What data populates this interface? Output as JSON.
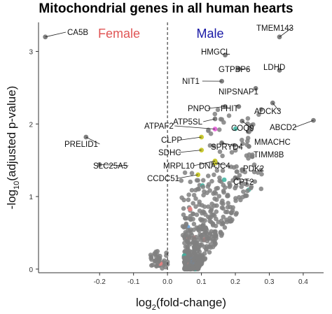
{
  "chart_data": {
    "type": "scatter",
    "title": "Mitochondrial genes in all human hearts",
    "xlabel": {
      "prefix": "log",
      "sub": "2",
      "suffix": "(fold-change)"
    },
    "ylabel": {
      "prefix": "-log",
      "sub": "10",
      "suffix": "(adjusted p-value)"
    },
    "xlim": [
      -0.38,
      0.46
    ],
    "ylim": [
      -0.05,
      3.4
    ],
    "xticks": [
      -0.2,
      -0.1,
      0.0,
      0.1,
      0.2,
      0.3,
      0.4
    ],
    "xtick_labels": [
      "-0.2",
      "-0.1",
      "0.0",
      "0.1",
      "0.2",
      "0.3",
      "0.4"
    ],
    "yticks": [
      0,
      1,
      2,
      3
    ],
    "ytick_labels": [
      "0",
      "1",
      "2",
      "3"
    ],
    "grid": false,
    "reference_line": {
      "x": 0,
      "style": "dashed"
    },
    "group_labels": [
      {
        "text": "Female",
        "color": "#e05555"
      },
      {
        "text": "Male",
        "color": "#1a1aa6"
      }
    ],
    "point_color": "#808080",
    "highlight_colors": {
      "yellow": "#c8c832",
      "magenta": "#e36ad8",
      "red": "#f08080",
      "teal": "#3cb4a0",
      "blue": "#5a9ad8"
    },
    "labeled_points": [
      {
        "label": "CA5B",
        "x": -0.36,
        "y": 3.2
      },
      {
        "label": "TMEM143",
        "x": 0.33,
        "y": 3.2
      },
      {
        "label": "HMGCL",
        "x": 0.17,
        "y": 2.95
      },
      {
        "label": "GTPBP6",
        "x": 0.21,
        "y": 2.76
      },
      {
        "label": "LDHD",
        "x": 0.33,
        "y": 2.74
      },
      {
        "label": "NIT1",
        "x": 0.16,
        "y": 2.59
      },
      {
        "label": "NIPSNAP1",
        "x": 0.26,
        "y": 2.49
      },
      {
        "label": "PNPO",
        "x": 0.17,
        "y": 2.24
      },
      {
        "label": "FHIT",
        "x": 0.21,
        "y": 2.24
      },
      {
        "label": "ADCK3",
        "x": 0.31,
        "y": 2.29
      },
      {
        "label": "ATP5SL",
        "x": 0.14,
        "y": 2.07
      },
      {
        "label": "ATPAF2",
        "x": 0.14,
        "y": 1.93
      },
      {
        "label": "COQ9",
        "x": 0.22,
        "y": 2.04
      },
      {
        "label": "ABCD2",
        "x": 0.43,
        "y": 2.05
      },
      {
        "label": "PRELID1",
        "x": -0.24,
        "y": 1.82
      },
      {
        "label": "CLPP",
        "x": 0.1,
        "y": 1.82
      },
      {
        "label": "SPRYD4",
        "x": 0.16,
        "y": 1.74
      },
      {
        "label": "MMACHC",
        "x": 0.24,
        "y": 1.69
      },
      {
        "label": "SDHC",
        "x": 0.1,
        "y": 1.64
      },
      {
        "label": "TIMM8B",
        "x": 0.25,
        "y": 1.55
      },
      {
        "label": "MRPL10",
        "x": 0.14,
        "y": 1.49
      },
      {
        "label": "DNAJC4",
        "x": 0.14,
        "y": 1.46
      },
      {
        "label": "PDK2",
        "x": 0.22,
        "y": 1.37
      },
      {
        "label": "SLC25A5",
        "x": -0.2,
        "y": 1.44
      },
      {
        "label": "CCDC51",
        "x": 0.09,
        "y": 1.3
      },
      {
        "label": "CPT2",
        "x": 0.2,
        "y": 1.26
      }
    ]
  }
}
